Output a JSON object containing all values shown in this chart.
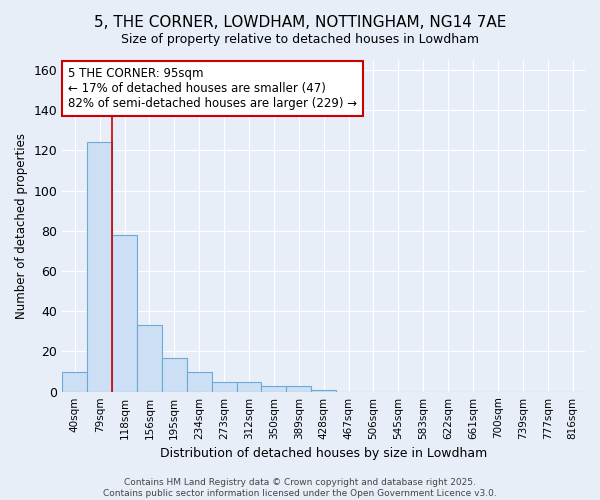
{
  "title": "5, THE CORNER, LOWDHAM, NOTTINGHAM, NG14 7AE",
  "subtitle": "Size of property relative to detached houses in Lowdham",
  "xlabel": "Distribution of detached houses by size in Lowdham",
  "ylabel": "Number of detached properties",
  "bar_color": "#ccdff5",
  "bar_edge_color": "#6aaad4",
  "background_color": "#e8eef8",
  "grid_color": "#ffffff",
  "categories": [
    "40sqm",
    "79sqm",
    "118sqm",
    "156sqm",
    "195sqm",
    "234sqm",
    "273sqm",
    "312sqm",
    "350sqm",
    "389sqm",
    "428sqm",
    "467sqm",
    "506sqm",
    "545sqm",
    "583sqm",
    "622sqm",
    "661sqm",
    "700sqm",
    "739sqm",
    "777sqm",
    "816sqm"
  ],
  "values": [
    10,
    124,
    78,
    33,
    17,
    10,
    5,
    5,
    3,
    3,
    1,
    0,
    0,
    0,
    0,
    0,
    0,
    0,
    0,
    0,
    0
  ],
  "ylim": [
    0,
    165
  ],
  "yticks": [
    0,
    20,
    40,
    60,
    80,
    100,
    120,
    140,
    160
  ],
  "red_line_x": 1.5,
  "annotation_text": "5 THE CORNER: 95sqm\n← 17% of detached houses are smaller (47)\n82% of semi-detached houses are larger (229) →",
  "annotation_box_color": "#ffffff",
  "annotation_box_edge": "#cc0000",
  "copyright_text": "Contains HM Land Registry data © Crown copyright and database right 2025.\nContains public sector information licensed under the Open Government Licence v3.0.",
  "figsize": [
    6.0,
    5.0
  ],
  "dpi": 100
}
